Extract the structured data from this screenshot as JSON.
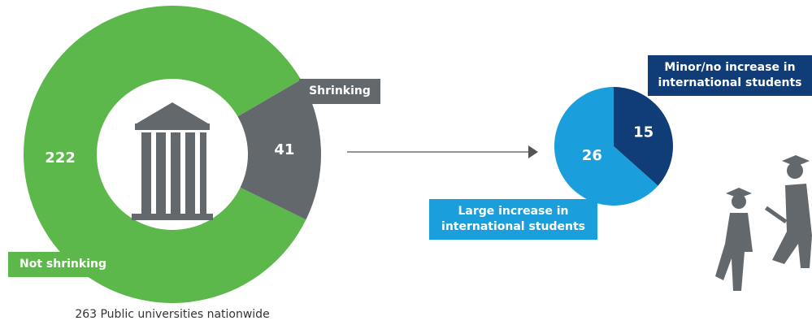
{
  "chart_data": [
    {
      "type": "donut",
      "caption": "263 Public universities nationwide",
      "categories": [
        "Not shrinking",
        "Shrinking"
      ],
      "values": [
        222,
        41
      ],
      "colors": [
        "#5cb84a",
        "#63686c"
      ]
    },
    {
      "type": "pie",
      "categories": [
        "Minor/no increase in\ninternational students",
        "Large increase in\ninternational students"
      ],
      "values": [
        15,
        26
      ],
      "colors": [
        "#103d78",
        "#1a9fdc"
      ]
    }
  ]
}
